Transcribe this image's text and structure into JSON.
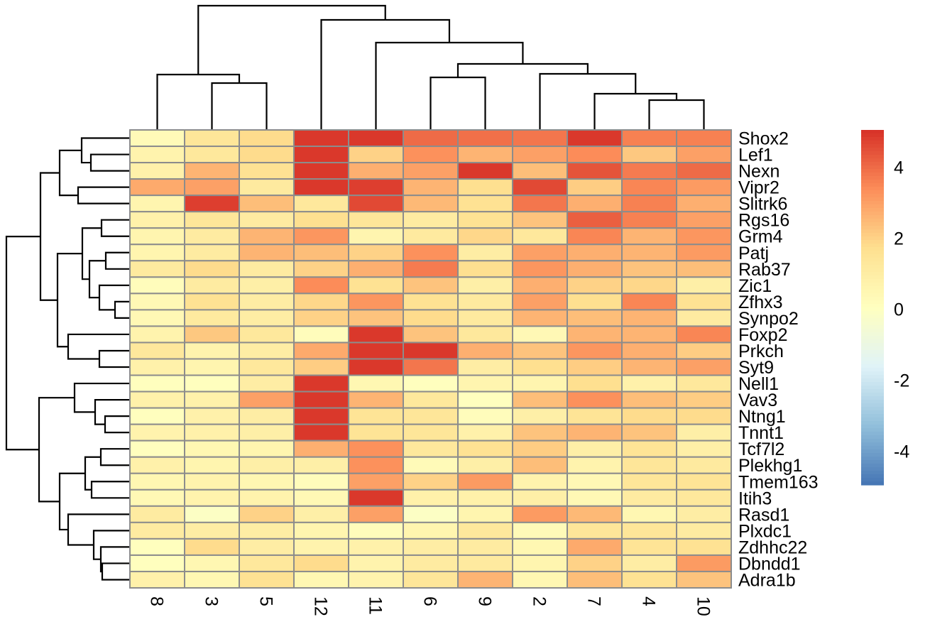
{
  "chart_data": {
    "type": "heatmap",
    "title": "",
    "columns": [
      "8",
      "3",
      "5",
      "12",
      "11",
      "6",
      "9",
      "2",
      "7",
      "4",
      "10"
    ],
    "rows": [
      "Shox2",
      "Lef1",
      "Nexn",
      "Vipr2",
      "Slitrk6",
      "Rgs16",
      "Grm4",
      "Patj",
      "Rab37",
      "Zic1",
      "Zfhx3",
      "Synpo2",
      "Foxp2",
      "Prkch",
      "Syt9",
      "Nell1",
      "Vav3",
      "Ntng1",
      "Tnnt1",
      "Tcf7l2",
      "Plekhg1",
      "Tmem163",
      "Itih3",
      "Rasd1",
      "Plxdc1",
      "Zdhhc22",
      "Dbndd1",
      "Adra1b"
    ],
    "values": [
      [
        0.3,
        1.4,
        1.8,
        4.9,
        4.9,
        4.0,
        3.9,
        3.8,
        4.9,
        3.6,
        3.6
      ],
      [
        0.7,
        1.3,
        1.8,
        4.9,
        2.0,
        3.3,
        2.6,
        3.0,
        3.4,
        2.2,
        3.0
      ],
      [
        0.8,
        2.6,
        1.6,
        4.9,
        2.7,
        3.0,
        4.9,
        2.4,
        4.4,
        3.7,
        4.0
      ],
      [
        2.8,
        3.0,
        1.2,
        4.9,
        4.8,
        2.6,
        1.7,
        4.6,
        2.1,
        3.5,
        3.1
      ],
      [
        0.6,
        4.8,
        2.4,
        1.3,
        4.6,
        2.5,
        1.6,
        3.8,
        2.7,
        3.6,
        2.7
      ],
      [
        0.8,
        1.4,
        1.1,
        1.7,
        1.4,
        1.1,
        1.6,
        2.3,
        4.2,
        3.6,
        3.0
      ],
      [
        0.6,
        1.1,
        2.6,
        3.2,
        0.6,
        1.2,
        1.9,
        1.3,
        3.5,
        2.6,
        3.2
      ],
      [
        0.6,
        1.1,
        2.6,
        2.4,
        2.0,
        3.3,
        1.0,
        3.0,
        2.7,
        2.6,
        3.1
      ],
      [
        1.2,
        1.8,
        1.1,
        2.0,
        2.7,
        3.7,
        1.7,
        3.2,
        2.7,
        2.3,
        2.4
      ],
      [
        0.2,
        1.1,
        0.9,
        3.4,
        1.6,
        2.3,
        0.9,
        2.7,
        2.0,
        1.9,
        0.9
      ],
      [
        0.4,
        1.6,
        1.0,
        1.9,
        3.2,
        1.6,
        1.2,
        3.0,
        1.7,
        3.5,
        1.6
      ],
      [
        0.4,
        1.2,
        1.0,
        2.0,
        2.3,
        1.8,
        1.2,
        2.6,
        2.4,
        2.6,
        1.1
      ],
      [
        0.7,
        2.2,
        1.3,
        0.2,
        4.9,
        2.3,
        1.3,
        0.4,
        2.6,
        2.6,
        3.5
      ],
      [
        1.3,
        0.7,
        1.0,
        2.8,
        4.9,
        4.9,
        2.7,
        2.3,
        3.2,
        2.7,
        2.1
      ],
      [
        0.8,
        0.6,
        1.3,
        2.1,
        4.9,
        3.8,
        1.0,
        1.7,
        2.1,
        2.6,
        3.0
      ],
      [
        0.1,
        0.1,
        1.0,
        4.9,
        0.5,
        0.1,
        0.6,
        0.6,
        1.7,
        0.8,
        1.3
      ],
      [
        0.8,
        0.8,
        3.0,
        4.9,
        2.6,
        1.3,
        0.1,
        2.4,
        3.3,
        2.4,
        2.1
      ],
      [
        0.1,
        0.8,
        1.0,
        4.9,
        1.5,
        1.4,
        0.2,
        0.9,
        1.5,
        1.8,
        1.8
      ],
      [
        0.7,
        0.8,
        0.9,
        4.9,
        1.5,
        1.4,
        0.8,
        2.3,
        2.6,
        2.3,
        0.9
      ],
      [
        0.1,
        0.5,
        0.6,
        2.7,
        3.3,
        1.3,
        1.6,
        2.1,
        0.9,
        1.5,
        0.9
      ],
      [
        0.8,
        0.6,
        0.9,
        0.9,
        3.3,
        0.3,
        0.9,
        2.4,
        0.7,
        1.4,
        1.2
      ],
      [
        0.5,
        0.7,
        0.5,
        0.2,
        3.0,
        2.0,
        3.1,
        0.7,
        0.4,
        1.4,
        1.5
      ],
      [
        0.4,
        0.7,
        0.7,
        0.4,
        4.9,
        0.8,
        0.8,
        0.9,
        0.4,
        1.1,
        1.3
      ],
      [
        1.1,
        -0.1,
        2.0,
        0.9,
        3.0,
        -0.1,
        0.6,
        3.1,
        2.5,
        0.5,
        1.0
      ],
      [
        1.1,
        1.0,
        1.0,
        0.6,
        0.2,
        0.6,
        1.3,
        0.3,
        1.4,
        1.4,
        1.1
      ],
      [
        0.1,
        1.8,
        1.0,
        0.7,
        0.8,
        1.0,
        1.1,
        0.5,
        2.8,
        1.5,
        1.6
      ],
      [
        0.1,
        0.5,
        1.3,
        1.8,
        0.7,
        1.1,
        1.2,
        0.6,
        2.0,
        1.0,
        3.1
      ],
      [
        0.8,
        0.5,
        1.6,
        0.5,
        0.7,
        1.4,
        2.6,
        0.5,
        2.4,
        1.6,
        2.3
      ]
    ],
    "color_scale": {
      "range": [
        -4.95,
        5.05
      ],
      "colors": [
        "#4575B4",
        "#91BFDB",
        "#E0F3F8",
        "#FFFFBF",
        "#FEE090",
        "#FC8D59",
        "#D73027"
      ],
      "ticks": [
        4,
        2,
        0,
        -2,
        -4
      ],
      "tick_labels": [
        "4",
        "2",
        "0",
        "-2",
        "-4"
      ]
    },
    "cell_border_color": "#8C8C8C",
    "row_dendrogram": true,
    "column_dendrogram": true,
    "legend_placement": "right"
  }
}
